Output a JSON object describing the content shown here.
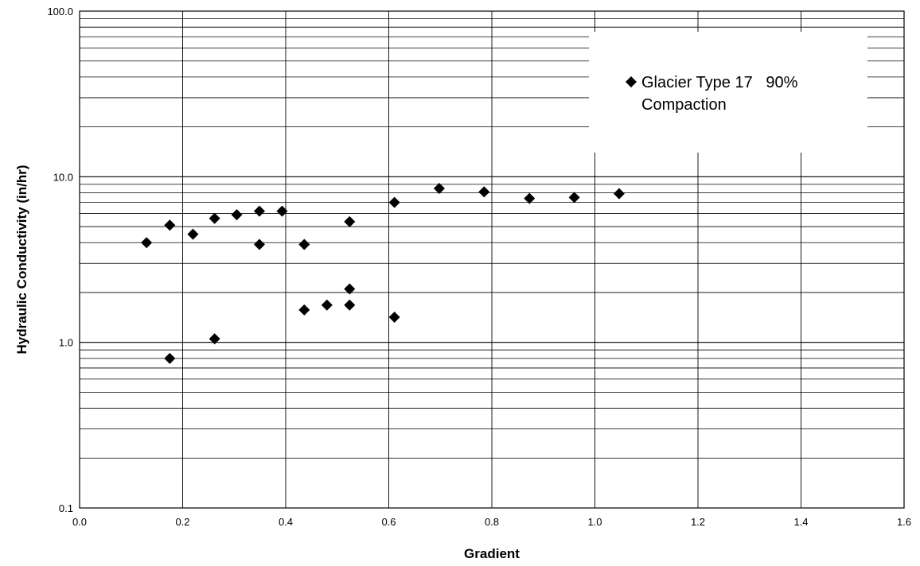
{
  "chart_data": {
    "type": "scatter",
    "title": "",
    "xlabel": "Gradient",
    "ylabel": "Hydraulic Conductivity (in/hr)",
    "xlim": [
      0.0,
      1.6
    ],
    "ylim": [
      0.1,
      100.0
    ],
    "yscale": "log",
    "grid": true,
    "x_ticks": [
      "0.0",
      "0.2",
      "0.4",
      "0.6",
      "0.8",
      "1.0",
      "1.2",
      "1.4",
      "1.6"
    ],
    "y_ticks": [
      "0.1",
      "1.0",
      "10.0",
      "100.0"
    ],
    "legend": {
      "placement": "top-right",
      "line1": "Glacier Type 17   90%",
      "line2": "Compaction"
    },
    "series": [
      {
        "marker": "diamond",
        "color": "#000000",
        "points": [
          {
            "x": 0.13,
            "y": 4.0
          },
          {
            "x": 0.175,
            "y": 5.1
          },
          {
            "x": 0.175,
            "y": 0.8
          },
          {
            "x": 0.22,
            "y": 4.5
          },
          {
            "x": 0.262,
            "y": 5.6
          },
          {
            "x": 0.262,
            "y": 1.05
          },
          {
            "x": 0.305,
            "y": 5.9
          },
          {
            "x": 0.349,
            "y": 6.2
          },
          {
            "x": 0.349,
            "y": 3.9
          },
          {
            "x": 0.393,
            "y": 6.2
          },
          {
            "x": 0.436,
            "y": 3.9
          },
          {
            "x": 0.436,
            "y": 1.57
          },
          {
            "x": 0.48,
            "y": 1.68
          },
          {
            "x": 0.524,
            "y": 5.35
          },
          {
            "x": 0.524,
            "y": 2.1
          },
          {
            "x": 0.524,
            "y": 1.68
          },
          {
            "x": 0.611,
            "y": 7.0
          },
          {
            "x": 0.611,
            "y": 1.42
          },
          {
            "x": 0.698,
            "y": 8.5
          },
          {
            "x": 0.785,
            "y": 8.1
          },
          {
            "x": 0.873,
            "y": 7.4
          },
          {
            "x": 0.96,
            "y": 7.5
          },
          {
            "x": 1.047,
            "y": 7.9
          }
        ]
      }
    ]
  }
}
